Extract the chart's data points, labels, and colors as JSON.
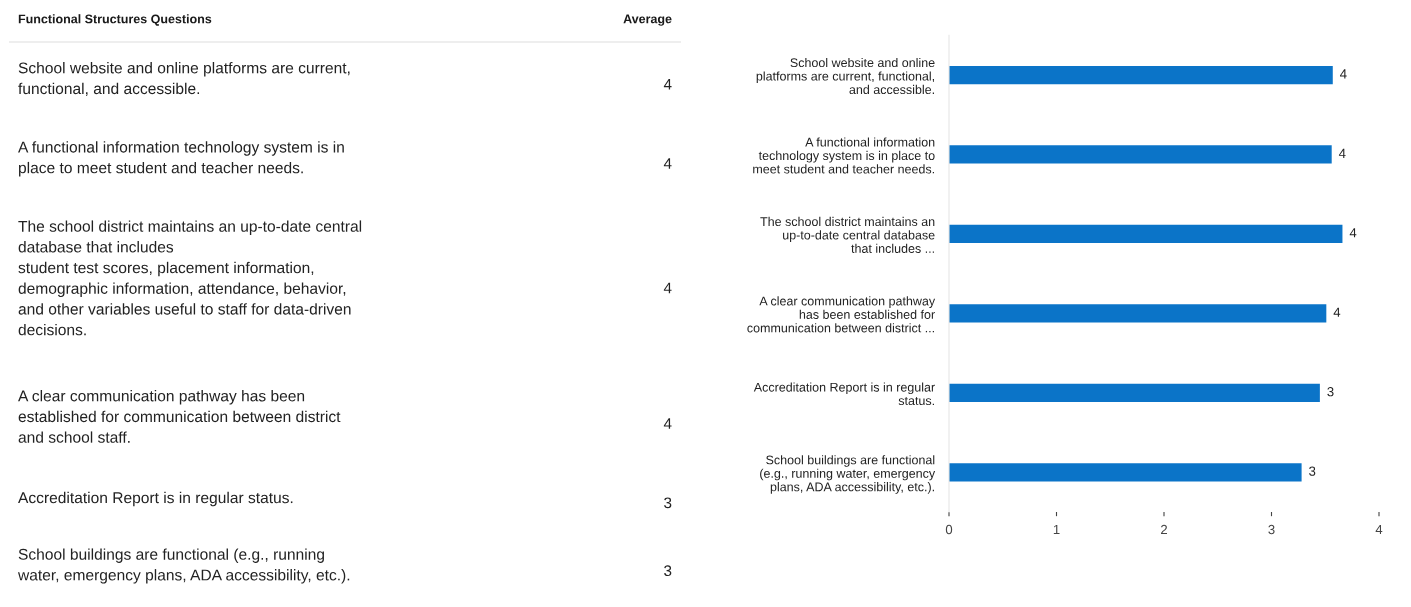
{
  "chart_data": [
    {
      "type": "other",
      "title": "Functional Structures Questions",
      "annotations": [
        "Average"
      ],
      "categories": [
        "School website and online platforms are current,\nfunctional, and accessible.",
        "A functional information technology system is in\nplace to meet student and teacher needs.",
        "The school district maintains an up-to-date central\ndatabase that includes\nstudent test scores, placement information,\ndemographic information, attendance, behavior,\nand other variables useful to staff for data-driven\ndecisions.",
        "A clear communication pathway has been\nestablished for communication between district\nand school staff.",
        "Accreditation Report is in regular status.",
        "School buildings are functional (e.g., running\nwater, emergency plans, ADA accessibility, etc.)."
      ],
      "values": [
        4,
        4,
        4,
        4,
        3,
        3
      ],
      "data_labels": true
    },
    {
      "type": "bar",
      "orientation": "horizontal",
      "categories": [
        "School website and online\nplatforms are current, functional,\nand accessible.",
        "A functional information\ntechnology system is in place to\nmeet student and teacher needs.",
        "The school district maintains an\nup-to-date central database\nthat includes ...",
        "A clear communication pathway\nhas been established for\ncommunication between district ...",
        "Accreditation Report is in regular\nstatus.",
        "School buildings are functional\n(e.g., running water, emergency\nplans, ADA accessibility, etc.)."
      ],
      "values": [
        3.57,
        3.56,
        3.66,
        3.51,
        3.45,
        3.28
      ],
      "value_labels": [
        "4",
        "4",
        "4",
        "4",
        "3",
        "3"
      ],
      "color": "#0b74c8",
      "xlim": [
        0,
        4
      ],
      "xticks": [
        0,
        1,
        2,
        3,
        4
      ]
    }
  ]
}
